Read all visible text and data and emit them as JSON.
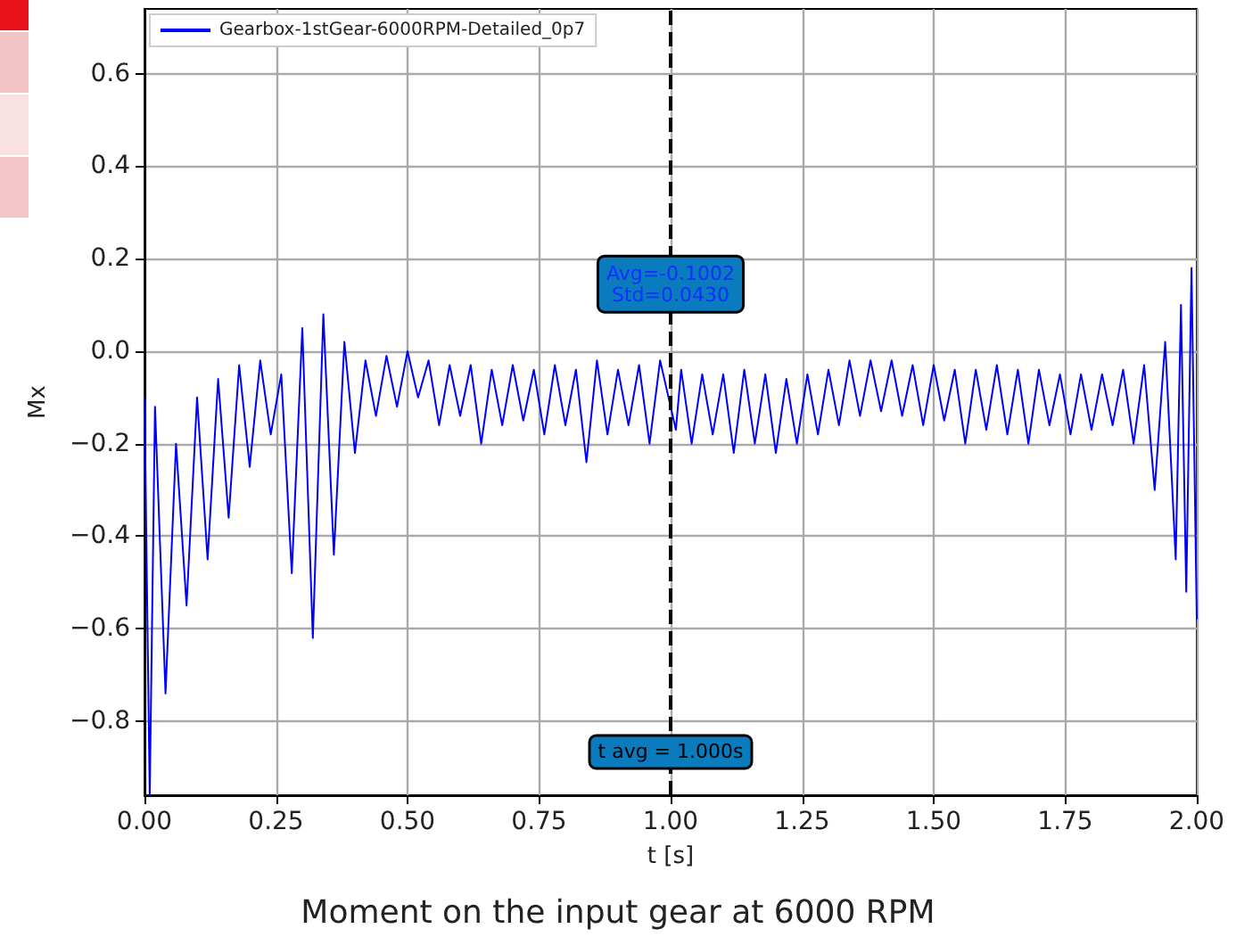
{
  "chart_data": {
    "type": "line",
    "title": "Moment on the input gear at 6000 RPM",
    "xlabel": "t [s]",
    "ylabel": "Mx",
    "annotations": [
      "Avg=-0.1002\nStd=0.0430"
    ],
    "xlim": [
      0,
      2
    ],
    "ylim": [
      -0.96,
      0.74
    ],
    "xticks": [
      {
        "value": 0,
        "label": "0.00"
      },
      {
        "value": 0.25,
        "label": "0.25"
      },
      {
        "value": 0.5,
        "label": "0.50"
      },
      {
        "value": 0.75,
        "label": "0.75"
      },
      {
        "value": 1,
        "label": "1.00"
      },
      {
        "value": 1.25,
        "label": "1.25"
      },
      {
        "value": 1.5,
        "label": "1.50"
      },
      {
        "value": 1.75,
        "label": "1.75"
      },
      {
        "value": 2,
        "label": "2.00"
      }
    ],
    "yticks": [
      {
        "value": -0.8,
        "label": "−0.8"
      },
      {
        "value": -0.6,
        "label": "−0.6"
      },
      {
        "value": -0.4,
        "label": "−0.4"
      },
      {
        "value": -0.2,
        "label": "−0.2"
      },
      {
        "value": 0,
        "label": "0.0"
      },
      {
        "value": 0.2,
        "label": "0.2"
      },
      {
        "value": 0.4,
        "label": "0.4"
      },
      {
        "value": 0.6,
        "label": "0.6"
      }
    ],
    "grid": true,
    "legend": "top left",
    "marker": "none",
    "line_style": "solid",
    "ref_lines": [
      {
        "axis": "x",
        "value": 1,
        "label": "t avg = 1.000s",
        "color": "#000000",
        "line_style": "dashed"
      }
    ],
    "series": [
      {
        "name": "Gearbox-1stGear-6000RPM-Detailed_0p7",
        "color": "#0000ff",
        "x": [
          0,
          0.01,
          0.02,
          0.04,
          0.06,
          0.08,
          0.1,
          0.12,
          0.14,
          0.16,
          0.18,
          0.2,
          0.22,
          0.24,
          0.26,
          0.28,
          0.3,
          0.32,
          0.34,
          0.36,
          0.38,
          0.4,
          0.42,
          0.44,
          0.46,
          0.48,
          0.5,
          0.52,
          0.54,
          0.56,
          0.58,
          0.6,
          0.62,
          0.64,
          0.66,
          0.68,
          0.7,
          0.72,
          0.74,
          0.76,
          0.78,
          0.8,
          0.82,
          0.84,
          0.86,
          0.88,
          0.9,
          0.92,
          0.94,
          0.96,
          0.98,
          1.01,
          1.02,
          1.04,
          1.06,
          1.08,
          1.1,
          1.12,
          1.14,
          1.16,
          1.18,
          1.2,
          1.22,
          1.24,
          1.26,
          1.28,
          1.3,
          1.32,
          1.34,
          1.36,
          1.38,
          1.4,
          1.42,
          1.44,
          1.46,
          1.48,
          1.5,
          1.52,
          1.54,
          1.56,
          1.58,
          1.6,
          1.62,
          1.64,
          1.66,
          1.68,
          1.7,
          1.72,
          1.74,
          1.76,
          1.78,
          1.8,
          1.82,
          1.84,
          1.86,
          1.88,
          1.9,
          1.92,
          1.94,
          1.96,
          1.97,
          1.98,
          1.99,
          2
        ],
        "values": [
          -0.1,
          -0.96,
          -0.12,
          -0.74,
          -0.2,
          -0.55,
          -0.1,
          -0.45,
          -0.06,
          -0.36,
          -0.03,
          -0.25,
          -0.02,
          -0.18,
          -0.05,
          -0.48,
          0.05,
          -0.62,
          0.08,
          -0.44,
          0.02,
          -0.22,
          -0.02,
          -0.14,
          -0.01,
          -0.12,
          0,
          -0.1,
          -0.02,
          -0.16,
          -0.03,
          -0.14,
          -0.03,
          -0.2,
          -0.04,
          -0.16,
          -0.03,
          -0.15,
          -0.04,
          -0.18,
          -0.03,
          -0.16,
          -0.04,
          -0.24,
          -0.02,
          -0.18,
          -0.04,
          -0.16,
          -0.03,
          -0.2,
          -0.02,
          -0.17,
          -0.04,
          -0.2,
          -0.05,
          -0.18,
          -0.05,
          -0.22,
          -0.04,
          -0.2,
          -0.05,
          -0.22,
          -0.06,
          -0.2,
          -0.05,
          -0.18,
          -0.04,
          -0.16,
          -0.02,
          -0.14,
          -0.02,
          -0.13,
          -0.02,
          -0.14,
          -0.03,
          -0.16,
          -0.03,
          -0.15,
          -0.04,
          -0.2,
          -0.04,
          -0.17,
          -0.03,
          -0.18,
          -0.04,
          -0.2,
          -0.04,
          -0.16,
          -0.05,
          -0.18,
          -0.05,
          -0.17,
          -0.05,
          -0.16,
          -0.04,
          -0.2,
          -0.03,
          -0.3,
          0.02,
          -0.45,
          0.1,
          -0.52,
          0.18,
          -0.58
        ]
      }
    ]
  }
}
